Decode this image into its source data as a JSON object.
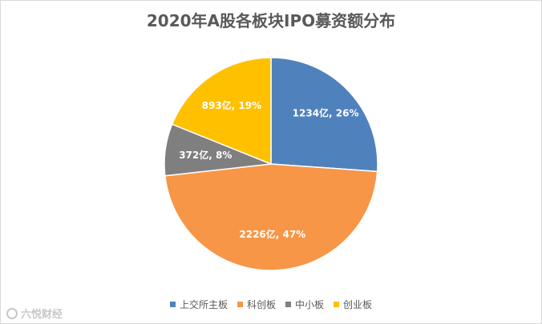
{
  "chart_data": {
    "type": "pie",
    "title": "2020年A股各板块IPO募资额分布",
    "categories": [
      "上交所主板",
      "科创板",
      "中小板",
      "创业板"
    ],
    "values": [
      1234,
      2226,
      372,
      893
    ],
    "percentages": [
      26,
      47,
      8,
      19
    ],
    "data_labels": [
      "1234亿, 26%",
      "2226亿, 47%",
      "372亿, 8%",
      "893亿, 19%"
    ],
    "colors": [
      "#4f81bd",
      "#f79646",
      "#7f7f7f",
      "#ffc000"
    ],
    "legend_position": "bottom",
    "start_angle_deg": 0,
    "direction": "clockwise"
  },
  "watermark": {
    "text": "六悦财经"
  }
}
